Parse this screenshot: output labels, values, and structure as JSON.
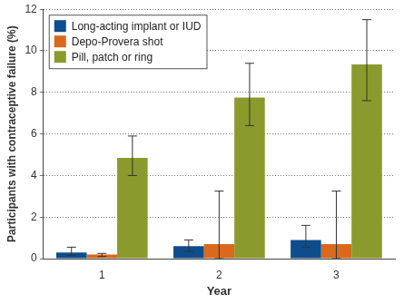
{
  "chart_data": {
    "type": "bar",
    "x_label": "Year",
    "y_label": "Participants with contraceptive failure (%)",
    "categories": [
      "1",
      "2",
      "3"
    ],
    "series": [
      {
        "name": "Long-acting implant or IUD",
        "color": "#0e4d8c",
        "values": [
          0.3,
          0.6,
          0.9
        ],
        "error_low": [
          0.15,
          0.35,
          0.55
        ],
        "error_high": [
          0.55,
          0.9,
          1.6
        ]
      },
      {
        "name": "Depo-Provera shot",
        "color": "#d9691c",
        "values": [
          0.2,
          0.7,
          0.7
        ],
        "error_low": [
          0.1,
          0,
          0
        ],
        "error_high": [
          0.25,
          3.25,
          3.25
        ]
      },
      {
        "name": "Pill, patch or ring",
        "color": "#8b9a2c",
        "values": [
          4.85,
          7.75,
          9.35
        ],
        "error_low": [
          4.0,
          6.4,
          7.6
        ],
        "error_high": [
          5.9,
          9.4,
          11.5
        ]
      }
    ],
    "ylim": [
      0,
      12
    ],
    "yticks": [
      0,
      2,
      4,
      6,
      8,
      10,
      12
    ],
    "grid": true,
    "legend": "upper left"
  }
}
